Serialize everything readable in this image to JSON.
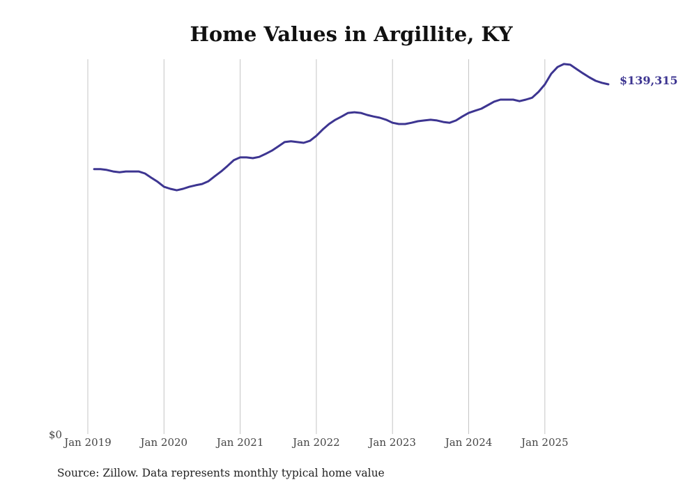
{
  "chart_data": {
    "type": "line",
    "title": "Home Values in Argillite, KY",
    "xlabel": "",
    "ylabel": "",
    "x_start": "Feb 2019",
    "x_end": "Nov 2025",
    "x_ticks": [
      "Jan 2019",
      "Jan 2020",
      "Jan 2021",
      "Jan 2022",
      "Jan 2023",
      "Jan 2024",
      "Jan 2025"
    ],
    "y_ticks": [
      "$0"
    ],
    "ylim": [
      0,
      150000
    ],
    "grid": "vertical",
    "series": [
      {
        "name": "Typical home value",
        "color": "#3d3591",
        "values": [
          105500,
          105500,
          105200,
          104600,
          104300,
          104600,
          104600,
          104600,
          103800,
          102100,
          100500,
          98500,
          97700,
          97100,
          97700,
          98500,
          99100,
          99600,
          100700,
          102700,
          104600,
          106800,
          109100,
          110200,
          110200,
          109900,
          110400,
          111600,
          112900,
          114600,
          116300,
          116600,
          116300,
          116000,
          116800,
          118800,
          121300,
          123500,
          125200,
          126500,
          127900,
          128200,
          127900,
          127100,
          126500,
          126000,
          125200,
          124000,
          123500,
          123500,
          124000,
          124600,
          124900,
          125200,
          124900,
          124300,
          124000,
          124900,
          126500,
          127900,
          128800,
          129600,
          131000,
          132400,
          133200,
          133200,
          133200,
          132600,
          133200,
          134000,
          136300,
          139300,
          143500,
          146200,
          147400,
          147100,
          145400,
          143700,
          142100,
          140700,
          139900,
          139315
        ]
      }
    ],
    "end_label": "$139,315",
    "source": "Source: Zillow. Data represents monthly typical home value"
  }
}
